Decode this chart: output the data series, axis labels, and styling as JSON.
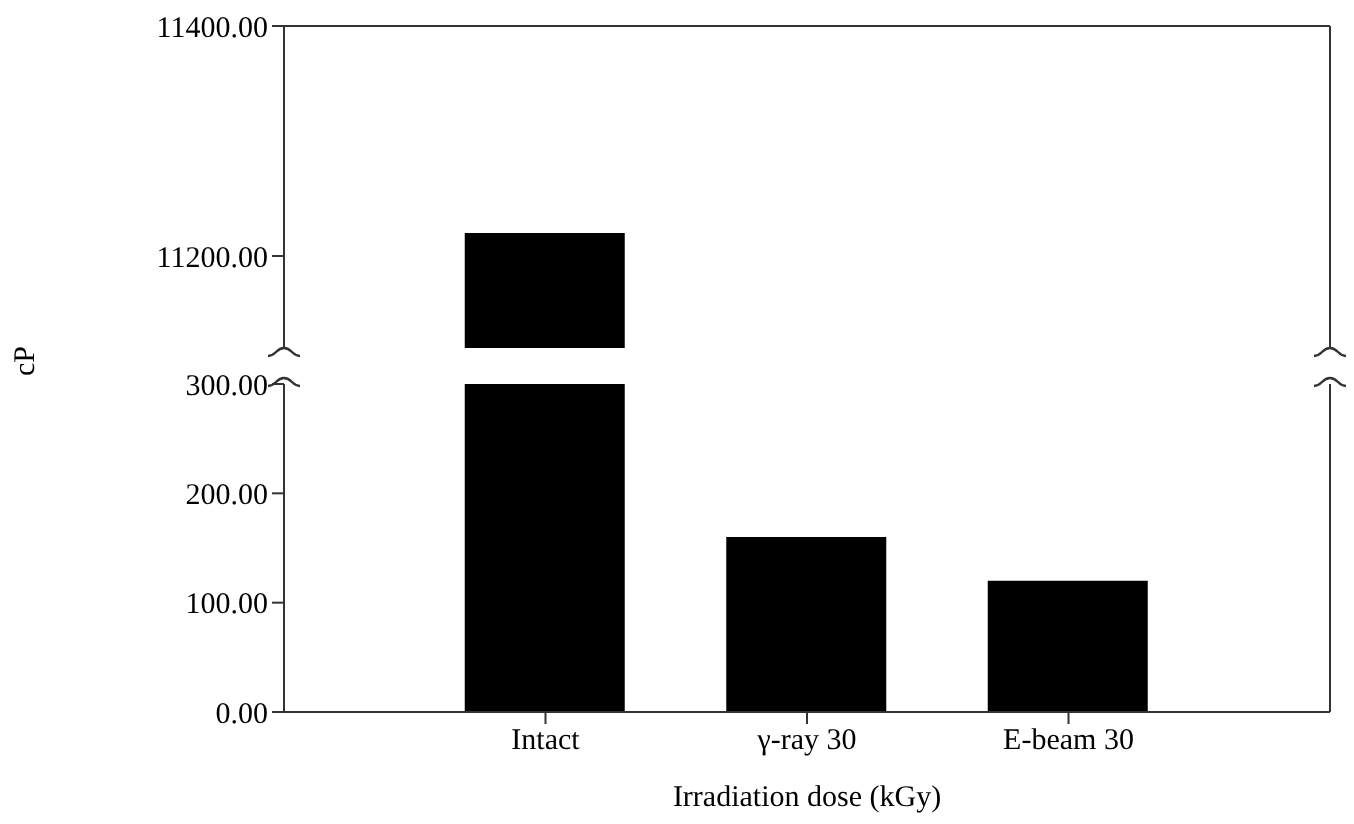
{
  "chart_data": [
    {
      "type": "bar",
      "values": [
        11220,
        null,
        null
      ],
      "color": "#000000",
      "ylim": [
        11120,
        11400
      ],
      "yticks": [
        {
          "value": 11200,
          "label": "11200.00"
        },
        {
          "value": 11400,
          "label": "11400.00"
        }
      ],
      "tick_labels": "y",
      "grid": false,
      "legend": false
    },
    {
      "type": "bar",
      "categories": [
        "Intact",
        "γ-ray 30",
        "E-beam 30"
      ],
      "values": [
        300,
        160,
        120
      ],
      "color": "#000000",
      "ylim": [
        0,
        300
      ],
      "yticks": [
        {
          "value": 0,
          "label": "0.00"
        },
        {
          "value": 100,
          "label": "100.00"
        },
        {
          "value": 200,
          "label": "200.00"
        },
        {
          "value": 300,
          "label": "300.00"
        }
      ],
      "xlabel": "Irradiation dose (kGy)",
      "ylabel": "cP",
      "grid": false,
      "legend": false
    }
  ]
}
